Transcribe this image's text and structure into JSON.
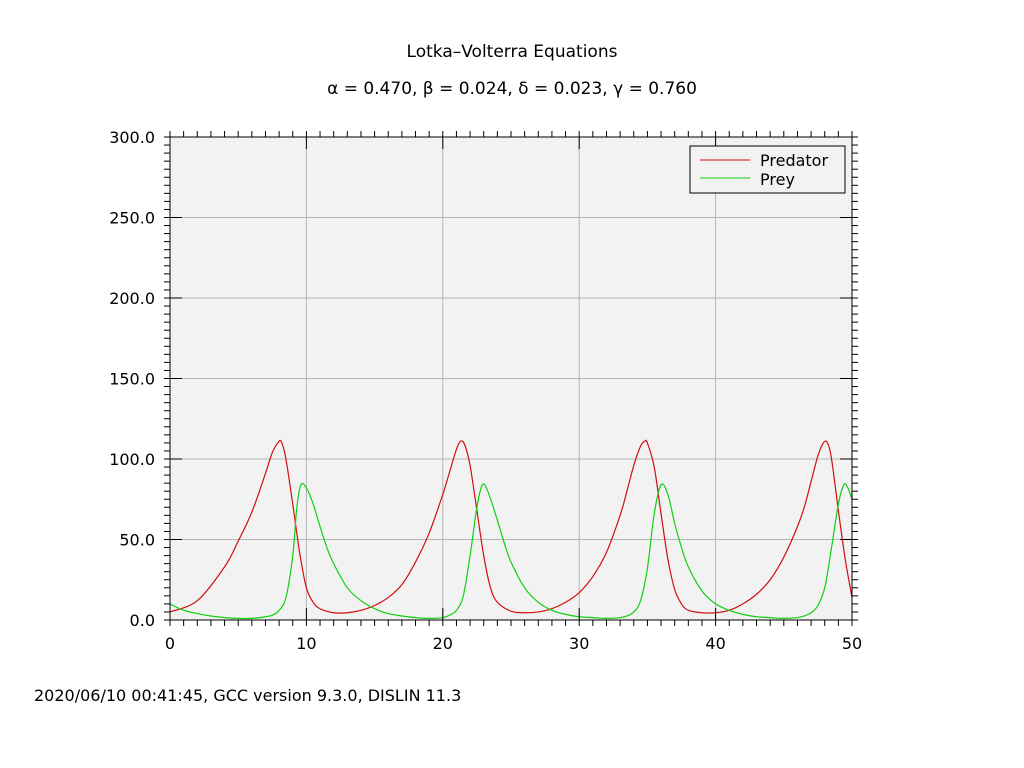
{
  "chart_data": {
    "type": "line",
    "title": "Lotka–Volterra Equations",
    "subtitle": "α = 0.470, β = 0.024, δ = 0.023, γ = 0.760",
    "xlabel": "",
    "ylabel": "",
    "xlim": [
      0,
      50
    ],
    "ylim": [
      0,
      300
    ],
    "x_ticks": [
      "0",
      "10",
      "20",
      "30",
      "40",
      "50"
    ],
    "y_ticks": [
      "0.0",
      "50.0",
      "100.0",
      "150.0",
      "200.0",
      "250.0",
      "300.0"
    ],
    "grid": true,
    "legend_position": "top-right",
    "series": [
      {
        "name": "Predator",
        "color": "#d01010",
        "x": [
          0,
          2,
          4,
          5,
          6,
          7,
          7.5,
          8,
          8.2,
          8.5,
          9,
          9.5,
          10,
          10.5,
          11,
          12,
          13,
          14,
          15,
          16,
          17,
          18,
          19,
          20,
          20.5,
          21,
          21.3,
          21.6,
          22,
          22.5,
          23,
          23.5,
          24,
          25,
          26,
          27,
          28,
          29,
          30,
          31,
          32,
          33,
          33.5,
          34,
          34.5,
          34.8,
          35,
          35.5,
          36,
          36.5,
          37,
          37.5,
          38,
          39,
          40,
          41,
          42,
          43,
          44,
          45,
          46,
          46.5,
          47,
          47.5,
          47.9,
          48.2,
          48.5,
          49,
          49.5,
          50
        ],
        "y": [
          5,
          12,
          33,
          49,
          67,
          91,
          104,
          111,
          110,
          100,
          72,
          42,
          20,
          11,
          7,
          4.5,
          4.5,
          6,
          9,
          14,
          22,
          36,
          54,
          78,
          92,
          106,
          111,
          109,
          96,
          68,
          40,
          20,
          11,
          5.5,
          4.5,
          5,
          7,
          11,
          17,
          27,
          42,
          65,
          80,
          96,
          108,
          111,
          110,
          95,
          66,
          38,
          19,
          10,
          6,
          4.5,
          4.5,
          6,
          10,
          16,
          25,
          39,
          58,
          70,
          86,
          102,
          110,
          110,
          100,
          68,
          38,
          14
        ]
      },
      {
        "name": "Prey",
        "color": "#10d010",
        "x": [
          0,
          1,
          2,
          3,
          4,
          5,
          6,
          7,
          7.5,
          8,
          8.5,
          9,
          9.3,
          9.6,
          10,
          10.5,
          11,
          11.5,
          12,
          13,
          14,
          15,
          16,
          17,
          18,
          19,
          20,
          20.5,
          21,
          21.5,
          22,
          22.5,
          22.9,
          23.3,
          24,
          24.5,
          25,
          26,
          27,
          28,
          29,
          30,
          31,
          32,
          33,
          33.5,
          34,
          34.5,
          35,
          35.5,
          36,
          36.5,
          37,
          37.5,
          38,
          39,
          40,
          41,
          42,
          43,
          44,
          45,
          46,
          46.5,
          47,
          47.5,
          48,
          48.5,
          49,
          49.4,
          49.7,
          50
        ],
        "y": [
          10,
          6,
          4,
          2.5,
          1.5,
          1,
          1,
          2,
          3,
          6,
          14,
          40,
          70,
          84,
          82,
          72,
          58,
          45,
          35,
          20,
          12,
          7,
          4,
          2.5,
          1.5,
          1,
          1.5,
          3,
          6,
          15,
          40,
          70,
          84,
          80,
          62,
          48,
          36,
          20,
          11,
          6,
          3.5,
          2,
          1.5,
          1,
          1.5,
          2.5,
          5,
          12,
          32,
          66,
          84,
          78,
          60,
          45,
          33,
          18,
          10,
          6,
          3.5,
          2,
          1.5,
          1,
          1.5,
          2.5,
          4.5,
          9,
          20,
          45,
          72,
          84,
          82,
          75
        ]
      }
    ]
  },
  "footer": {
    "text": "2020/06/10 00:41:45, GCC version 9.3.0, DISLIN 11.3"
  }
}
